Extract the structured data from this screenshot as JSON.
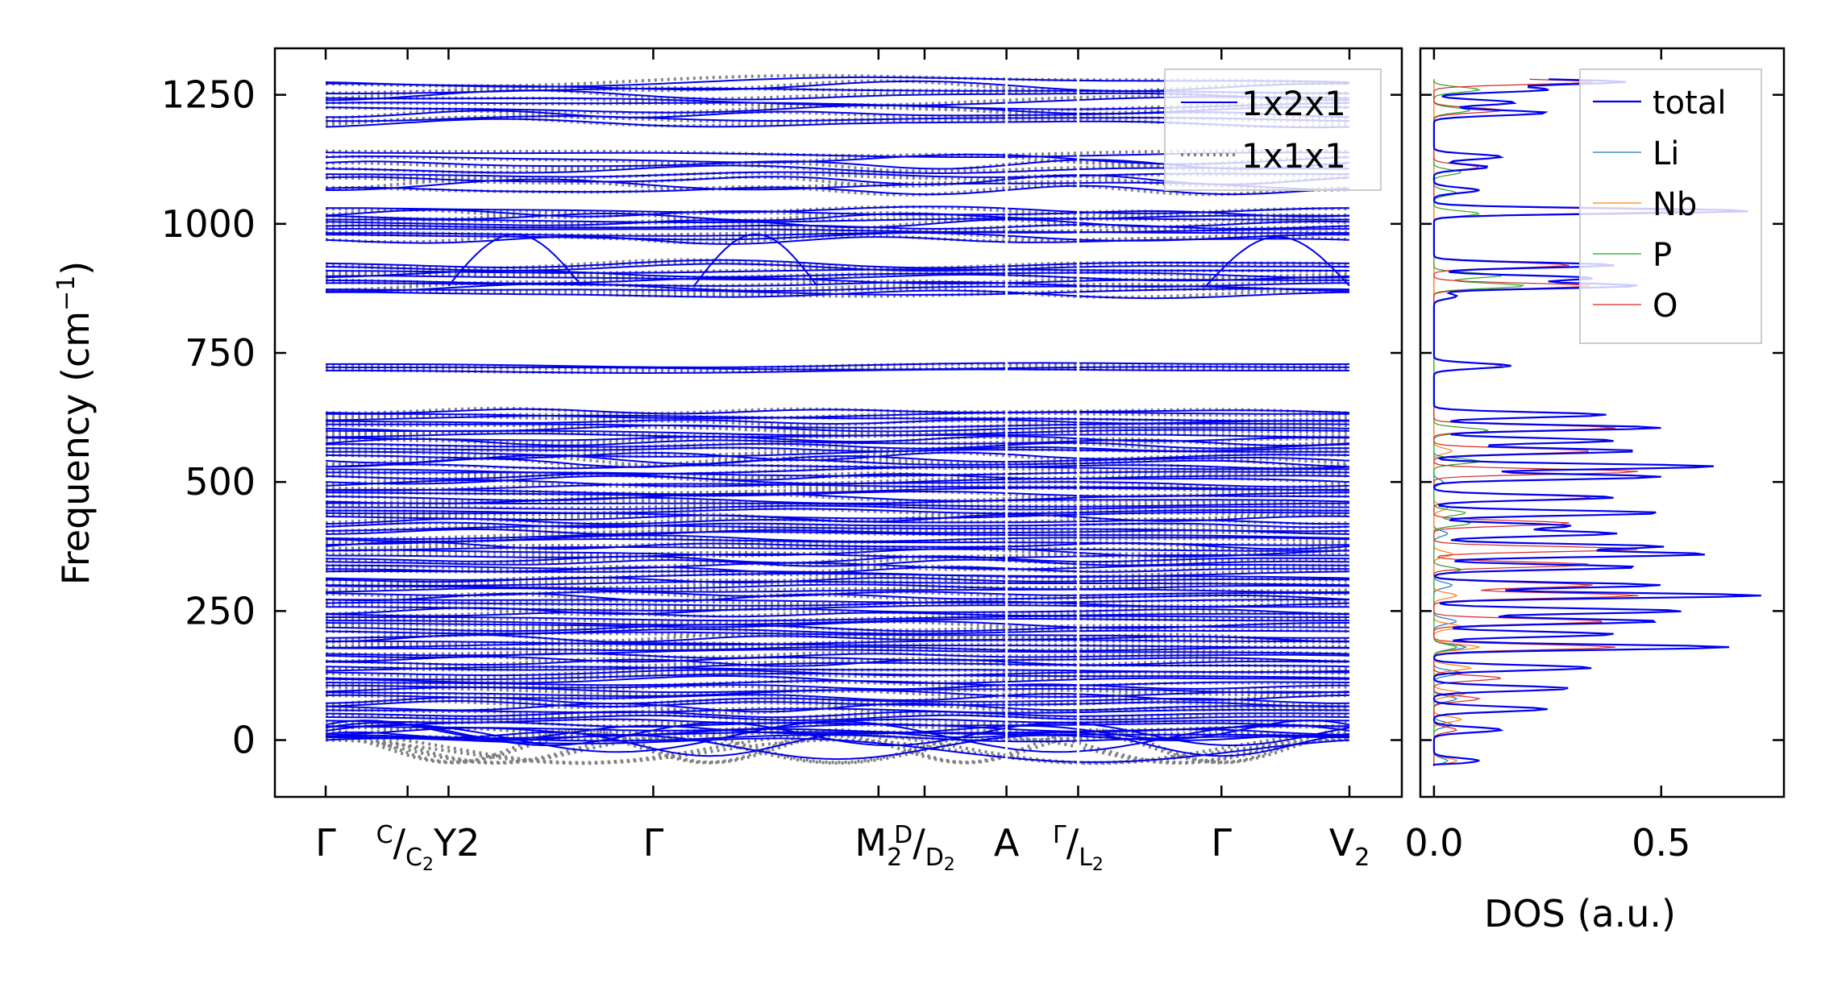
{
  "colors": {
    "band_1x2x1": "#0000ee",
    "band_1x1x1": "#808080",
    "total": "#0000ee",
    "Li": "#1f77b4",
    "Nb": "#ff7f0e",
    "P": "#2ca02c",
    "O": "#d62728",
    "axes": "#000000"
  },
  "chart_data": [
    {
      "type": "line",
      "panel": "phonon-band-structure",
      "ylabel": "Frequency (cm",
      "ylabel_superscript": "−1",
      "ylabel_suffix": ")",
      "ylim": [
        -110,
        1340
      ],
      "yticks": [
        0,
        250,
        500,
        750,
        1000,
        1250
      ],
      "ytick_labels": [
        "0",
        "250",
        "500",
        "750",
        "1000",
        "1250"
      ],
      "xlim": [
        0,
        1
      ],
      "path_tick_positions": [
        0,
        0.08,
        0.12,
        0.32,
        0.54,
        0.585,
        0.665,
        0.735,
        0.875,
        1.0
      ],
      "path_labels": [
        {
          "x": 0.0,
          "main": "Γ",
          "sup": "",
          "sub": ""
        },
        {
          "x": 0.1,
          "main": "Y",
          "sup": "C",
          "sub": "C",
          "sub2": "2",
          "sep": "/",
          "tail": "2"
        },
        {
          "x": 0.32,
          "main": "Γ",
          "sup": "",
          "sub": ""
        },
        {
          "x": 0.54,
          "main": "M",
          "sup": "",
          "sub": "2"
        },
        {
          "x": 0.585,
          "main": "",
          "sup": "D",
          "sub": "D",
          "sub2": "2",
          "sep": "/",
          "tail": ""
        },
        {
          "x": 0.665,
          "main": "A",
          "sup": "",
          "sub": ""
        },
        {
          "x": 0.735,
          "main": "",
          "sup": "Γ",
          "sub": "L",
          "sub2": "2",
          "sep": "/",
          "tail": ""
        },
        {
          "x": 0.875,
          "main": "Γ",
          "sup": "",
          "sub": ""
        },
        {
          "x": 1.0,
          "main": "V",
          "sup": "",
          "sub": "2"
        }
      ],
      "segment_breaks": [
        0.665,
        0.735
      ],
      "band_groups": [
        {
          "from": 0,
          "to": 640,
          "count": 96
        },
        {
          "from": 712,
          "to": 730,
          "count": 3
        },
        {
          "from": 860,
          "to": 925,
          "count": 10
        },
        {
          "from": 965,
          "to": 1030,
          "count": 10
        },
        {
          "from": 1060,
          "to": 1140,
          "count": 8
        },
        {
          "from": 1190,
          "to": 1280,
          "count": 10
        }
      ],
      "acoustic_dip_min": -45,
      "series": [
        {
          "name": "1x2x1",
          "style": "solid"
        },
        {
          "name": "1x1x1",
          "style": "dotted"
        }
      ]
    },
    {
      "type": "line",
      "panel": "density-of-states",
      "xlabel": "DOS (a.u.)",
      "xlim": [
        -0.03,
        0.77
      ],
      "xticks": [
        0.0,
        0.5
      ],
      "xtick_labels": [
        "0.0",
        "0.5"
      ],
      "ylim": [
        -110,
        1340
      ],
      "series": [
        {
          "name": "total",
          "peaks": [
            [
              -40,
              0.1
            ],
            [
              20,
              0.15
            ],
            [
              60,
              0.25
            ],
            [
              100,
              0.3
            ],
            [
              140,
              0.35
            ],
            [
              180,
              0.65
            ],
            [
              205,
              0.4
            ],
            [
              230,
              0.5
            ],
            [
              250,
              0.55
            ],
            [
              280,
              0.72
            ],
            [
              300,
              0.5
            ],
            [
              335,
              0.45
            ],
            [
              360,
              0.6
            ],
            [
              375,
              0.5
            ],
            [
              400,
              0.4
            ],
            [
              415,
              0.3
            ],
            [
              440,
              0.5
            ],
            [
              470,
              0.4
            ],
            [
              510,
              0.5
            ],
            [
              530,
              0.62
            ],
            [
              560,
              0.45
            ],
            [
              580,
              0.4
            ],
            [
              605,
              0.5
            ],
            [
              630,
              0.38
            ],
            [
              725,
              0.17
            ],
            [
              860,
              0.05
            ],
            [
              880,
              0.45
            ],
            [
              895,
              0.35
            ],
            [
              920,
              0.4
            ],
            [
              1025,
              0.7
            ],
            [
              1065,
              0.1
            ],
            [
              1110,
              0.12
            ],
            [
              1130,
              0.15
            ],
            [
              1215,
              0.25
            ],
            [
              1235,
              0.18
            ],
            [
              1260,
              0.25
            ],
            [
              1275,
              0.42
            ]
          ]
        },
        {
          "name": "Li",
          "peaks": [
            [
              -40,
              0.03
            ],
            [
              30,
              0.04
            ],
            [
              80,
              0.05
            ],
            [
              130,
              0.06
            ],
            [
              180,
              0.07
            ],
            [
              230,
              0.05
            ],
            [
              300,
              0.04
            ],
            [
              400,
              0.03
            ],
            [
              500,
              0.02
            ]
          ]
        },
        {
          "name": "Nb",
          "peaks": [
            [
              -40,
              0.05
            ],
            [
              40,
              0.06
            ],
            [
              90,
              0.07
            ],
            [
              140,
              0.08
            ],
            [
              180,
              0.1
            ],
            [
              220,
              0.06
            ],
            [
              280,
              0.05
            ],
            [
              360,
              0.04
            ],
            [
              450,
              0.03
            ],
            [
              560,
              0.04
            ]
          ]
        },
        {
          "name": "P",
          "peaks": [
            [
              180,
              0.05
            ],
            [
              330,
              0.06
            ],
            [
              420,
              0.08
            ],
            [
              440,
              0.07
            ],
            [
              540,
              0.1
            ],
            [
              600,
              0.12
            ],
            [
              880,
              0.2
            ],
            [
              900,
              0.15
            ],
            [
              1020,
              0.1
            ],
            [
              1060,
              0.05
            ],
            [
              1100,
              0.06
            ],
            [
              1220,
              0.08
            ],
            [
              1260,
              0.1
            ]
          ]
        },
        {
          "name": "O",
          "peaks": [
            [
              20,
              0.05
            ],
            [
              80,
              0.1
            ],
            [
              120,
              0.15
            ],
            [
              180,
              0.4
            ],
            [
              230,
              0.38
            ],
            [
              280,
              0.45
            ],
            [
              300,
              0.35
            ],
            [
              340,
              0.35
            ],
            [
              370,
              0.45
            ],
            [
              420,
              0.3
            ],
            [
              470,
              0.35
            ],
            [
              520,
              0.45
            ],
            [
              560,
              0.35
            ],
            [
              605,
              0.4
            ],
            [
              725,
              0.15
            ],
            [
              880,
              0.35
            ],
            [
              920,
              0.3
            ],
            [
              1025,
              0.55
            ],
            [
              1110,
              0.1
            ],
            [
              1220,
              0.15
            ],
            [
              1275,
              0.35
            ]
          ]
        }
      ]
    }
  ]
}
